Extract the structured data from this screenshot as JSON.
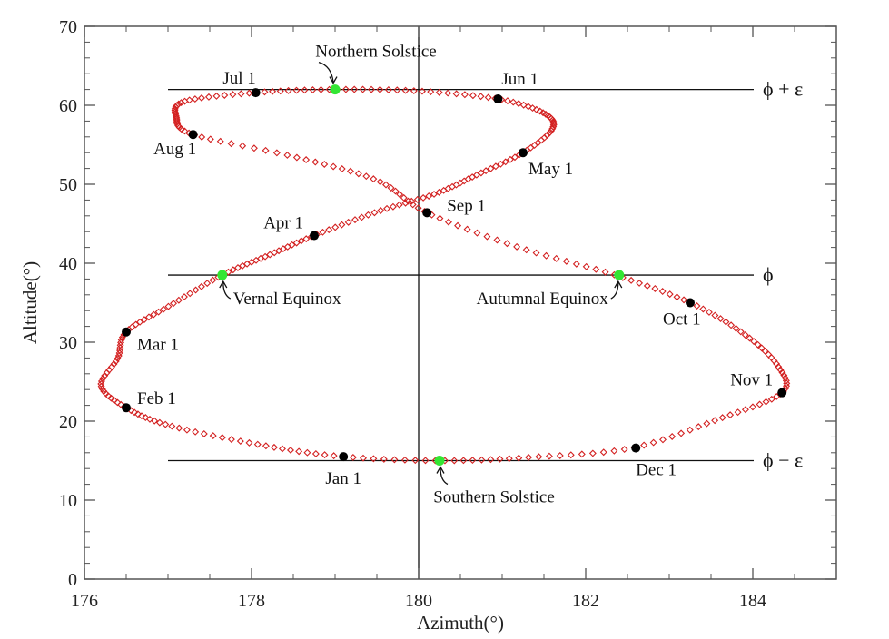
{
  "chart_data": {
    "type": "scatter",
    "title": "",
    "xlabel": "Azimuth(°)",
    "ylabel": "Altitude(°)",
    "xlim": [
      176,
      185
    ],
    "ylim": [
      0,
      70
    ],
    "xticks": [
      176,
      178,
      180,
      182,
      184
    ],
    "yticks": [
      0,
      10,
      20,
      30,
      40,
      50,
      60,
      70
    ],
    "grid": false,
    "curve": {
      "color": "#d32020",
      "marker": "open-diamond",
      "daily_points": 365,
      "points": [
        [
          180.2,
          15.0
        ],
        [
          179.0,
          15.6
        ],
        [
          178.0,
          17.2
        ],
        [
          177.0,
          19.5
        ],
        [
          176.5,
          21.7
        ],
        [
          176.2,
          24.5
        ],
        [
          176.4,
          28.0
        ],
        [
          176.5,
          31.3
        ],
        [
          177.0,
          34.5
        ],
        [
          177.65,
          38.5
        ],
        [
          178.2,
          41.0
        ],
        [
          178.75,
          43.5
        ],
        [
          179.5,
          46.5
        ],
        [
          180.2,
          48.8
        ],
        [
          180.7,
          51.2
        ],
        [
          181.25,
          54.0
        ],
        [
          181.6,
          57.0
        ],
        [
          181.5,
          59.0
        ],
        [
          180.95,
          60.8
        ],
        [
          180.0,
          61.8
        ],
        [
          179.0,
          62.0
        ],
        [
          178.05,
          61.6
        ],
        [
          177.2,
          60.5
        ],
        [
          177.1,
          58.5
        ],
        [
          177.3,
          56.3
        ],
        [
          178.5,
          53.5
        ],
        [
          179.5,
          50.5
        ],
        [
          180.1,
          46.4
        ],
        [
          181.2,
          42.0
        ],
        [
          182.35,
          38.5
        ],
        [
          183.25,
          35.0
        ],
        [
          183.9,
          31.0
        ],
        [
          184.3,
          27.0
        ],
        [
          184.35,
          23.6
        ],
        [
          183.6,
          20.3
        ],
        [
          182.55,
          16.6
        ],
        [
          181.3,
          15.4
        ],
        [
          180.2,
          15.0
        ]
      ]
    },
    "reference_lines": {
      "horizontal": [
        {
          "y": 62.0,
          "label": "ϕ + ε",
          "x_from": 177
        },
        {
          "y": 38.5,
          "label": "ϕ",
          "x_from": 177
        },
        {
          "y": 15.0,
          "label": "ϕ − ε",
          "x_from": 177
        }
      ],
      "vertical": [
        {
          "x": 180
        }
      ]
    },
    "month_markers": [
      {
        "label": "Jan 1",
        "x": 179.1,
        "y": 15.5,
        "dx": 0,
        "dy": 30,
        "anchor": "middle"
      },
      {
        "label": "Feb 1",
        "x": 176.5,
        "y": 21.7,
        "dx": 12,
        "dy": -4,
        "anchor": "start"
      },
      {
        "label": "Mar 1",
        "x": 176.5,
        "y": 31.3,
        "dx": 12,
        "dy": 20,
        "anchor": "start"
      },
      {
        "label": "Apr 1",
        "x": 178.75,
        "y": 43.5,
        "dx": -12,
        "dy": -8,
        "anchor": "end"
      },
      {
        "label": "May 1",
        "x": 181.25,
        "y": 54.0,
        "dx": 6,
        "dy": 24,
        "anchor": "start"
      },
      {
        "label": "Jun 1",
        "x": 180.95,
        "y": 60.8,
        "dx": 4,
        "dy": -16,
        "anchor": "start"
      },
      {
        "label": "Jul 1",
        "x": 178.05,
        "y": 61.6,
        "dx": -18,
        "dy": -10,
        "anchor": "middle"
      },
      {
        "label": "Aug 1",
        "x": 177.3,
        "y": 56.3,
        "dx": -20,
        "dy": 22,
        "anchor": "middle"
      },
      {
        "label": "Sep 1",
        "x": 180.1,
        "y": 46.4,
        "dx": 22,
        "dy": -2,
        "anchor": "start"
      },
      {
        "label": "Oct 1",
        "x": 183.25,
        "y": 35.0,
        "dx": -30,
        "dy": 24,
        "anchor": "start"
      },
      {
        "label": "Nov 1",
        "x": 184.35,
        "y": 23.6,
        "dx": -10,
        "dy": -8,
        "anchor": "end"
      },
      {
        "label": "Dec 1",
        "x": 182.6,
        "y": 16.6,
        "dx": 0,
        "dy": 30,
        "anchor": "start"
      }
    ],
    "event_markers": [
      {
        "label": "Northern Solstice",
        "x": 179.0,
        "y": 62.0,
        "pointer": "down",
        "tdx": 45,
        "tdy": -36,
        "anchor": "middle"
      },
      {
        "label": "Vernal Equinox",
        "x": 177.65,
        "y": 38.5,
        "pointer": "up",
        "tdx": 12,
        "tdy": 32,
        "anchor": "start"
      },
      {
        "label": "Autumnal Equinox",
        "x": 182.4,
        "y": 38.5,
        "pointer": "up",
        "tdx": -12,
        "tdy": 32,
        "anchor": "end"
      },
      {
        "label": "Southern Solstice",
        "x": 180.25,
        "y": 15.0,
        "pointer": "up",
        "tdx": 60,
        "tdy": 46,
        "anchor": "middle"
      }
    ],
    "colors": {
      "curve": "#d32020",
      "month_marker": "#000000",
      "event_marker": "#33e633",
      "axes": "#555555",
      "lines": "#111111"
    }
  }
}
